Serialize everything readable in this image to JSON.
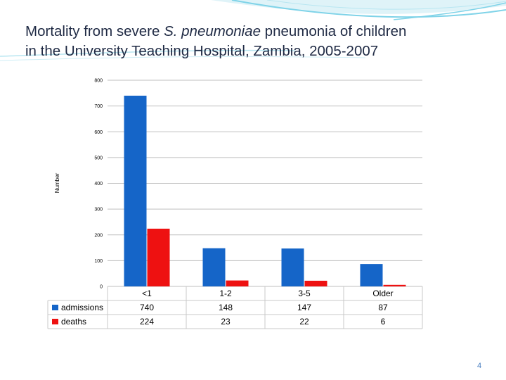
{
  "slide": {
    "title_part1": "Mortality from severe ",
    "title_italic": "S. pneumoniae",
    "title_part2": " pneumonia of children",
    "title_line2": "in the University Teaching Hospital, Zambia, 2005-2007",
    "page_number": "4"
  },
  "colors": {
    "admissions": "#1565C8",
    "deaths": "#EE1111",
    "grid": "#BFBFBF",
    "decor": "#7FD3E8"
  },
  "chart_data": {
    "type": "bar",
    "title": "",
    "xlabel": "",
    "ylabel": "Number",
    "ylim": [
      0,
      800
    ],
    "yticks": [
      0,
      100,
      200,
      300,
      400,
      500,
      600,
      700,
      800
    ],
    "categories": [
      "<1",
      "1-2",
      "3-5",
      "Older"
    ],
    "series": [
      {
        "name": "admissions",
        "values": [
          740,
          148,
          147,
          87
        ]
      },
      {
        "name": "deaths",
        "values": [
          224,
          23,
          22,
          6
        ]
      }
    ],
    "data_table": true,
    "grid": true,
    "legend": "data-table"
  }
}
